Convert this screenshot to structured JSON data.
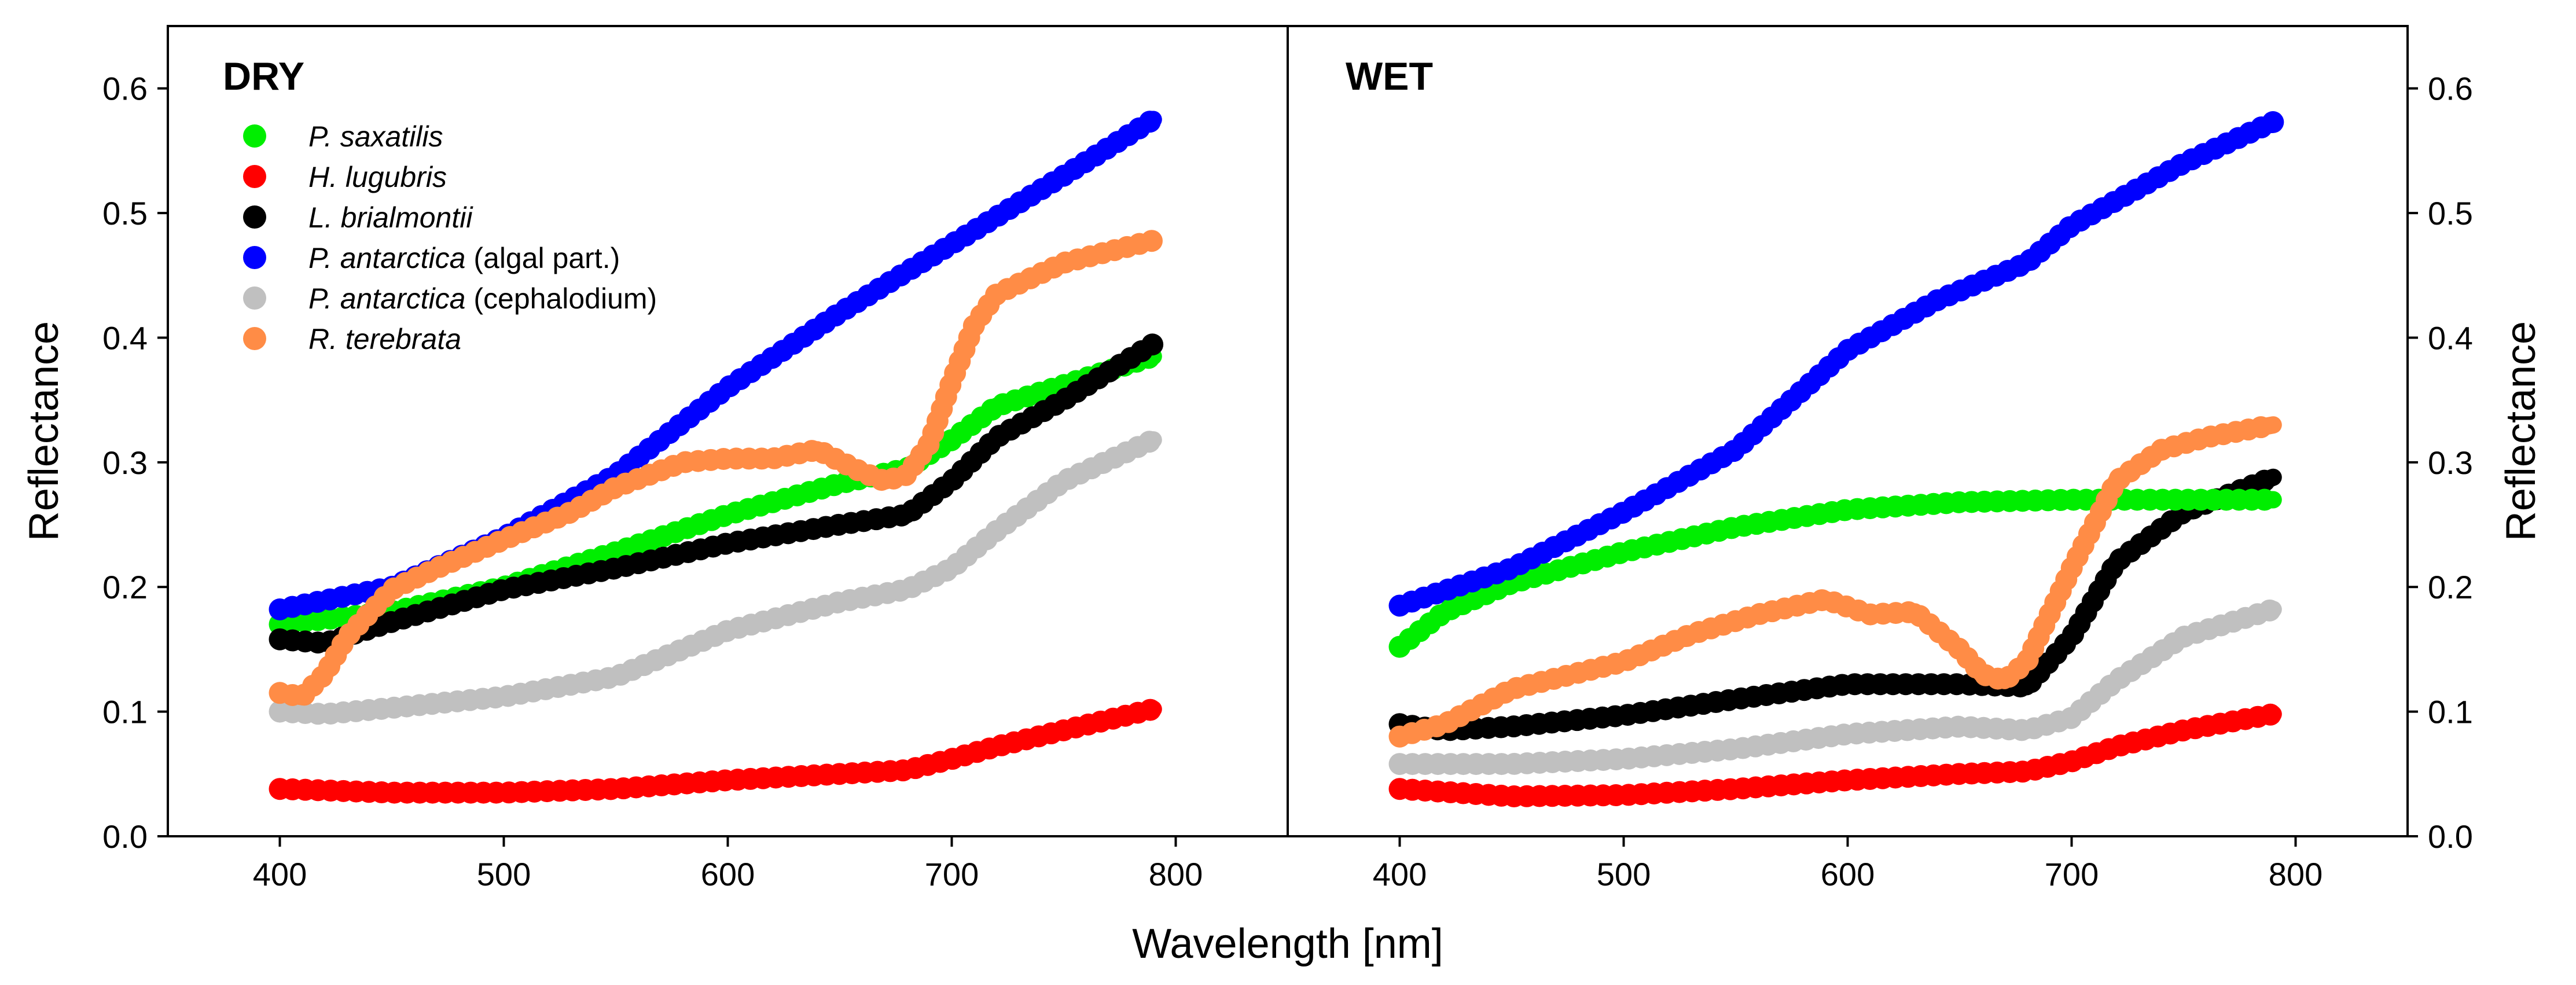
{
  "chart_data": {
    "type": "line",
    "xlabel": "Wavelength [nm]",
    "ylabel": "Reflectance",
    "xlim": [
      350,
      850
    ],
    "ylim": [
      0.0,
      0.65
    ],
    "xticks": [
      400,
      500,
      600,
      700,
      800
    ],
    "yticks": [
      "0.0",
      "0.1",
      "0.2",
      "0.3",
      "0.4",
      "0.5",
      "0.6"
    ],
    "grid": false,
    "legend_position": "top-left",
    "legend": [
      {
        "key": "psax",
        "italic": "P. saxatilis",
        "suffix": "",
        "color": "#00ee00"
      },
      {
        "key": "hlug",
        "italic": "H. lugubris",
        "suffix": "",
        "color": "#ff0000"
      },
      {
        "key": "lbri",
        "italic": "L. brialmontii",
        "suffix": "",
        "color": "#000000"
      },
      {
        "key": "pant_alg",
        "italic": "P. antarctica",
        "suffix": " (algal part.)",
        "color": "#0000ff"
      },
      {
        "key": "pant_cep",
        "italic": "P. antarctica",
        "suffix": " (cephalodium)",
        "color": "#c0c0c0"
      },
      {
        "key": "rter",
        "italic": "R. terebrata",
        "suffix": "",
        "color": "#ff8c46"
      }
    ],
    "panels": [
      {
        "title": "DRY",
        "series": [
          {
            "key": "pant_cep",
            "x": [
              400,
              420,
              450,
              500,
              550,
              600,
              650,
              680,
              700,
              720,
              750,
              790
            ],
            "y": [
              0.1,
              0.098,
              0.103,
              0.112,
              0.128,
              0.165,
              0.188,
              0.198,
              0.215,
              0.245,
              0.285,
              0.318
            ]
          },
          {
            "key": "psax",
            "x": [
              400,
              450,
              500,
              550,
              600,
              650,
              680,
              700,
              720,
              750,
              790
            ],
            "y": [
              0.17,
              0.18,
              0.2,
              0.228,
              0.258,
              0.283,
              0.295,
              0.318,
              0.345,
              0.362,
              0.385
            ]
          },
          {
            "key": "lbri",
            "x": [
              400,
              420,
              450,
              500,
              550,
              600,
              650,
              680,
              700,
              720,
              750,
              790
            ],
            "y": [
              0.158,
              0.155,
              0.172,
              0.198,
              0.215,
              0.235,
              0.25,
              0.258,
              0.285,
              0.32,
              0.35,
              0.395
            ]
          },
          {
            "key": "hlug",
            "x": [
              400,
              450,
              500,
              550,
              600,
              650,
              680,
              700,
              720,
              750,
              790
            ],
            "y": [
              0.038,
              0.035,
              0.035,
              0.038,
              0.045,
              0.05,
              0.053,
              0.062,
              0.072,
              0.085,
              0.102
            ]
          },
          {
            "key": "pant_alg",
            "x": [
              400,
              450,
              500,
              550,
              600,
              650,
              700,
              750,
              790
            ],
            "y": [
              0.182,
              0.2,
              0.24,
              0.29,
              0.36,
              0.42,
              0.475,
              0.53,
              0.575
            ]
          },
          {
            "key": "rter",
            "x": [
              400,
              410,
              420,
              430,
              450,
              470,
              500,
              530,
              550,
              580,
              600,
              620,
              640,
              660,
              670,
              680,
              690,
              700,
              710,
              720,
              750,
              790
            ],
            "y": [
              0.115,
              0.112,
              0.13,
              0.16,
              0.198,
              0.215,
              0.238,
              0.26,
              0.28,
              0.3,
              0.303,
              0.303,
              0.31,
              0.292,
              0.285,
              0.29,
              0.315,
              0.365,
              0.41,
              0.435,
              0.46,
              0.478
            ]
          }
        ]
      },
      {
        "title": "WET",
        "series": [
          {
            "key": "pant_cep",
            "x": [
              400,
              450,
              500,
              550,
              600,
              650,
              680,
              700,
              720,
              750,
              790
            ],
            "y": [
              0.058,
              0.058,
              0.062,
              0.07,
              0.082,
              0.088,
              0.085,
              0.095,
              0.125,
              0.16,
              0.182
            ]
          },
          {
            "key": "hlug",
            "x": [
              400,
              450,
              500,
              550,
              600,
              650,
              680,
              700,
              720,
              750,
              790
            ],
            "y": [
              0.038,
              0.032,
              0.033,
              0.038,
              0.045,
              0.05,
              0.052,
              0.06,
              0.072,
              0.085,
              0.098
            ]
          },
          {
            "key": "lbri",
            "x": [
              400,
              420,
              450,
              500,
              550,
              600,
              650,
              680,
              700,
              720,
              750,
              790
            ],
            "y": [
              0.09,
              0.085,
              0.088,
              0.097,
              0.11,
              0.122,
              0.122,
              0.12,
              0.16,
              0.22,
              0.26,
              0.288
            ]
          },
          {
            "key": "psax",
            "x": [
              400,
              420,
              450,
              500,
              550,
              600,
              650,
              700,
              750,
              790
            ],
            "y": [
              0.152,
              0.18,
              0.203,
              0.228,
              0.248,
              0.262,
              0.268,
              0.27,
              0.27,
              0.27
            ]
          },
          {
            "key": "rter",
            "x": [
              400,
              420,
              450,
              500,
              530,
              560,
              590,
              610,
              630,
              650,
              660,
              670,
              680,
              700,
              720,
              740,
              760,
              790
            ],
            "y": [
              0.08,
              0.09,
              0.118,
              0.14,
              0.162,
              0.178,
              0.19,
              0.178,
              0.18,
              0.15,
              0.13,
              0.125,
              0.14,
              0.215,
              0.285,
              0.31,
              0.32,
              0.33
            ]
          },
          {
            "key": "pant_alg",
            "x": [
              400,
              450,
              500,
              550,
              600,
              640,
              680,
              700,
              720,
              750,
              790
            ],
            "y": [
              0.185,
              0.215,
              0.26,
              0.31,
              0.39,
              0.43,
              0.46,
              0.49,
              0.51,
              0.54,
              0.573
            ]
          }
        ]
      }
    ]
  }
}
